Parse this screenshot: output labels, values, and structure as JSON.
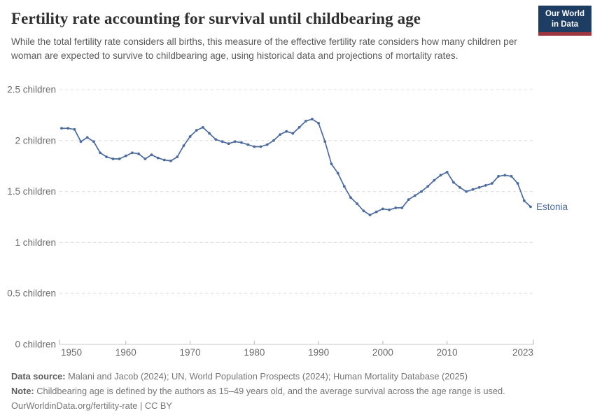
{
  "header": {
    "title": "Fertility rate accounting for survival until childbearing age",
    "subtitle": "While the total fertility rate considers all births, this measure of the effective fertility rate considers how many children per woman are expected to survive to childbearing age, using historical data and projections of mortality rates.",
    "logo": {
      "line1": "Our World",
      "line2": "in Data",
      "bg_color": "#1d3d63",
      "stripe_color": "#a0353f"
    }
  },
  "chart_data": {
    "type": "line",
    "title": "Fertility rate accounting for survival until childbearing age",
    "entity": "Estonia",
    "xlabel": "",
    "ylabel": "",
    "xlim": [
      1950,
      2023
    ],
    "ylim": [
      0,
      2.5
    ],
    "grid": "horizontal-dashed",
    "legend_position": "end-of-line-label",
    "x_ticks": [
      {
        "value": 1950,
        "label": "1950"
      },
      {
        "value": 1960,
        "label": "1960"
      },
      {
        "value": 1970,
        "label": "1970"
      },
      {
        "value": 1980,
        "label": "1980"
      },
      {
        "value": 1990,
        "label": "1990"
      },
      {
        "value": 2000,
        "label": "2000"
      },
      {
        "value": 2010,
        "label": "2010"
      },
      {
        "value": 2023,
        "label": "2023"
      }
    ],
    "y_ticks": [
      {
        "value": 0,
        "label": "0 children"
      },
      {
        "value": 0.5,
        "label": "0.5 children"
      },
      {
        "value": 1,
        "label": "1 children"
      },
      {
        "value": 1.5,
        "label": "1.5 children"
      },
      {
        "value": 2,
        "label": "2 children"
      },
      {
        "value": 2.5,
        "label": "2.5 children"
      }
    ],
    "series": [
      {
        "name": "Estonia",
        "color": "#4C6A9C",
        "years": [
          1950,
          1951,
          1952,
          1953,
          1954,
          1955,
          1956,
          1957,
          1958,
          1959,
          1960,
          1961,
          1962,
          1963,
          1964,
          1965,
          1966,
          1967,
          1968,
          1969,
          1970,
          1971,
          1972,
          1973,
          1974,
          1975,
          1976,
          1977,
          1978,
          1979,
          1980,
          1981,
          1982,
          1983,
          1984,
          1985,
          1986,
          1987,
          1988,
          1989,
          1990,
          1991,
          1992,
          1993,
          1994,
          1995,
          1996,
          1997,
          1998,
          1999,
          2000,
          2001,
          2002,
          2003,
          2004,
          2005,
          2006,
          2007,
          2008,
          2009,
          2010,
          2011,
          2012,
          2013,
          2014,
          2015,
          2016,
          2017,
          2018,
          2019,
          2020,
          2021,
          2022,
          2023
        ],
        "values": [
          2.12,
          2.12,
          2.11,
          1.99,
          2.03,
          1.99,
          1.88,
          1.84,
          1.82,
          1.82,
          1.85,
          1.88,
          1.87,
          1.82,
          1.86,
          1.83,
          1.81,
          1.8,
          1.84,
          1.95,
          2.04,
          2.1,
          2.13,
          2.07,
          2.01,
          1.99,
          1.97,
          1.99,
          1.98,
          1.96,
          1.94,
          1.94,
          1.96,
          2.0,
          2.06,
          2.09,
          2.07,
          2.13,
          2.19,
          2.21,
          2.17,
          1.99,
          1.77,
          1.68,
          1.55,
          1.44,
          1.38,
          1.31,
          1.27,
          1.3,
          1.33,
          1.32,
          1.34,
          1.34,
          1.42,
          1.46,
          1.5,
          1.55,
          1.61,
          1.66,
          1.69,
          1.59,
          1.54,
          1.5,
          1.52,
          1.54,
          1.56,
          1.58,
          1.65,
          1.66,
          1.65,
          1.58,
          1.41,
          1.35
        ]
      }
    ],
    "colors": {
      "gridline": "#dcdcdc",
      "axis": "#c8c8c8",
      "tick": "#b4b4b4",
      "tick_label": "#6b6b6b"
    }
  },
  "footer": {
    "data_source_label": "Data source:",
    "data_source": "Malani and Jacob (2024); UN, World Population Prospects (2024); Human Mortality Database (2025)",
    "note_label": "Note:",
    "note": "Childbearing age is defined by the authors as 15–49 years old, and the average survival across the age range is used.",
    "url": "OurWorldinData.org/fertility-rate | CC BY"
  }
}
